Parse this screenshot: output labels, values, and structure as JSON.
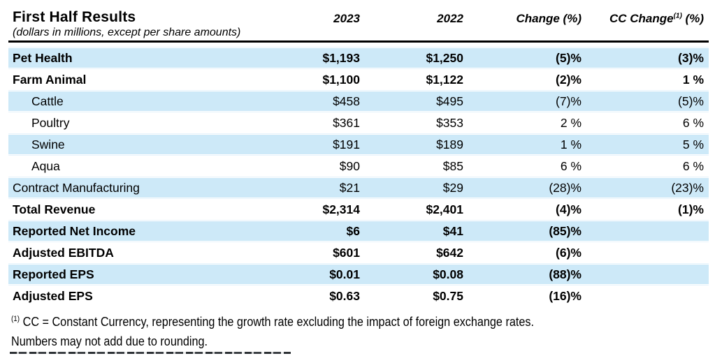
{
  "colors": {
    "row_highlight_blue": "#cde9f8",
    "separator_light_blue": "#e6f3fb",
    "rule_black": "#000000",
    "text_black": "#000000"
  },
  "table": {
    "title": "First Half Results",
    "subtitle": "(dollars in millions, except per share amounts)",
    "columns": {
      "y2023": "2023",
      "y2022": "2022",
      "change": "Change (%)",
      "cc_prefix": "CC Change",
      "cc_sup": "(1)",
      "cc_suffix": "(%)"
    },
    "rows": [
      {
        "label": "Pet Health",
        "y2023": "$1,193",
        "y2022": "$1,250",
        "change": "(5)%",
        "cc": "(3)%"
      },
      {
        "label": "Farm Animal",
        "y2023": "$1,100",
        "y2022": "$1,122",
        "change": "(2)%",
        "cc": "1 %"
      },
      {
        "label": "Cattle",
        "y2023": "$458",
        "y2022": "$495",
        "change": "(7)%",
        "cc": "(5)%"
      },
      {
        "label": "Poultry",
        "y2023": "$361",
        "y2022": "$353",
        "change": "2 %",
        "cc": "6 %"
      },
      {
        "label": "Swine",
        "y2023": "$191",
        "y2022": "$189",
        "change": "1 %",
        "cc": "5 %"
      },
      {
        "label": "Aqua",
        "y2023": "$90",
        "y2022": "$85",
        "change": "6 %",
        "cc": "6 %"
      },
      {
        "label": "Contract Manufacturing",
        "y2023": "$21",
        "y2022": "$29",
        "change": "(28)%",
        "cc": "(23)%"
      },
      {
        "label": "Total Revenue",
        "y2023": "$2,314",
        "y2022": "$2,401",
        "change": "(4)%",
        "cc": "(1)%"
      },
      {
        "label": "Reported Net Income",
        "y2023": "$6",
        "y2022": "$41",
        "change": "(85)%",
        "cc": ""
      },
      {
        "label": "Adjusted EBITDA",
        "y2023": "$601",
        "y2022": "$642",
        "change": "(6)%",
        "cc": ""
      },
      {
        "label": "Reported EPS",
        "y2023": "$0.01",
        "y2022": "$0.08",
        "change": "(88)%",
        "cc": ""
      },
      {
        "label": "Adjusted EPS",
        "y2023": "$0.63",
        "y2022": "$0.75",
        "change": "(16)%",
        "cc": ""
      }
    ]
  },
  "footnotes": {
    "sup": "(1)",
    "line1": "CC = Constant Currency, representing the growth rate excluding the impact of foreign exchange rates.",
    "line2": "Numbers may not add due to rounding."
  }
}
